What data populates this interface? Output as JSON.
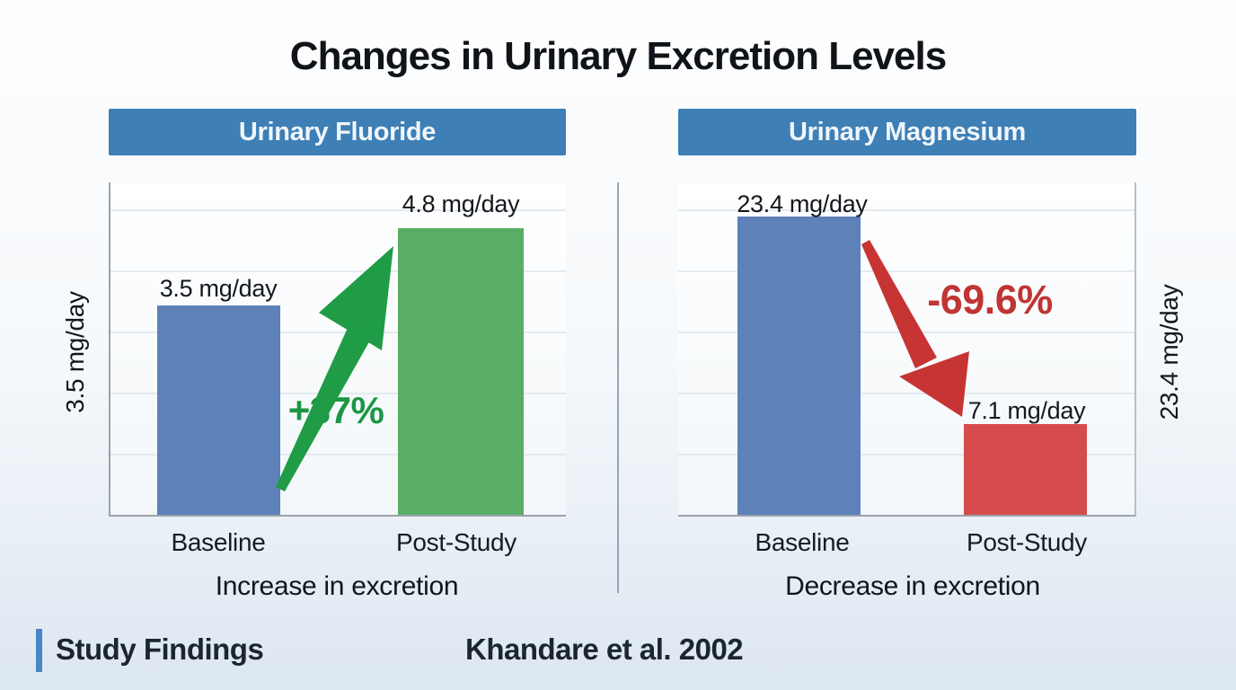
{
  "title": "Changes in Urinary Excretion Levels",
  "footer": {
    "label": "Study Findings",
    "citation": "Khandare et al. 2002"
  },
  "colors": {
    "header_blue": "#3e7fb5",
    "bar_blue": "#5d81b8",
    "bar_green": "#5aad64",
    "bar_red": "#d64c4c",
    "arrow_green": "#1f9c45",
    "arrow_red": "#c73434",
    "change_up_text": "#1d9644",
    "change_down_text": "#c13434",
    "axis_line": "#9aa3ab",
    "gridline": "#e3eaf1"
  },
  "chart_data": [
    {
      "type": "bar",
      "title": "Urinary Fluoride",
      "categories": [
        "Baseline",
        "Post-Study"
      ],
      "values": [
        3.5,
        4.8
      ],
      "unit": "mg/day",
      "bar_labels": [
        "3.5 mg/day",
        "4.8 mg/day"
      ],
      "bar_colors": [
        "#5d81b8",
        "#5aad64"
      ],
      "change_label": "+37%",
      "change_direction": "up",
      "axis_label": "3.5 mg/day",
      "caption": "Increase in excretion",
      "ylim": [
        0,
        5.6
      ],
      "grid": true,
      "legend": "none"
    },
    {
      "type": "bar",
      "title": "Urinary Magnesium",
      "categories": [
        "Baseline",
        "Post-Study"
      ],
      "values": [
        23.4,
        7.1
      ],
      "unit": "mg/day",
      "bar_labels": [
        "23.4 mg/day",
        "7.1 mg/day"
      ],
      "bar_colors": [
        "#5d81b8",
        "#d64c4c"
      ],
      "change_label": "-69.6%",
      "change_direction": "down",
      "axis_label": "23.4 mg/day",
      "caption": "Decrease in excretion",
      "ylim": [
        0,
        26.2
      ],
      "grid": true,
      "legend": "none"
    }
  ]
}
